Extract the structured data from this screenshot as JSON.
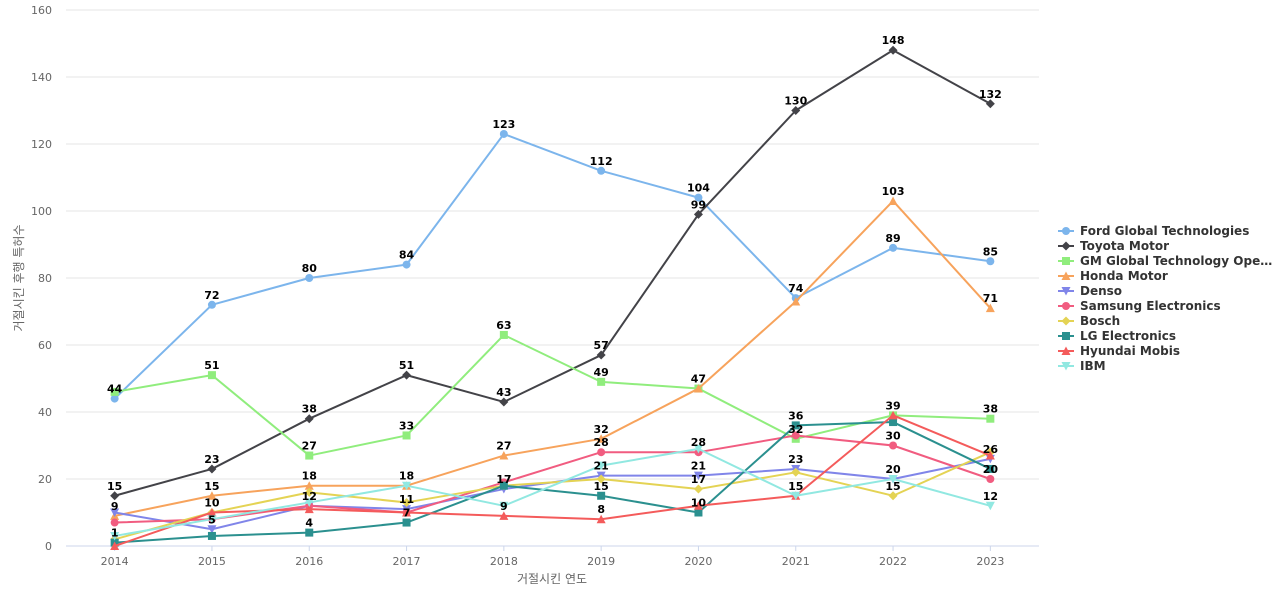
{
  "chart_data": {
    "type": "line",
    "title": "",
    "xlabel": "거절시킨 연도",
    "ylabel": "거절시킨 후행 특허수",
    "x": [
      2014,
      2015,
      2016,
      2017,
      2018,
      2019,
      2020,
      2021,
      2022,
      2023
    ],
    "ylim": [
      0,
      160
    ],
    "yticks": [
      0,
      20,
      40,
      60,
      80,
      100,
      120,
      140,
      160
    ],
    "grid": true,
    "legend_position": "right",
    "series": [
      {
        "name": "Ford Global Technologies",
        "values": [
          44,
          72,
          80,
          84,
          123,
          112,
          104,
          74,
          89,
          85
        ],
        "color": "#7cb5ec",
        "marker": "circle",
        "show_labels": true
      },
      {
        "name": "Toyota Motor",
        "values": [
          15,
          23,
          38,
          51,
          43,
          57,
          99,
          130,
          148,
          132
        ],
        "color": "#434348",
        "marker": "diamond",
        "show_labels": true
      },
      {
        "name": "GM Global Technology Operat...",
        "values": [
          46,
          51,
          27,
          33,
          63,
          49,
          47,
          32,
          39,
          38
        ],
        "color": "#90ed7d",
        "marker": "square",
        "show_labels": true
      },
      {
        "name": "Honda Motor",
        "values": [
          9,
          15,
          18,
          18,
          27,
          32,
          47,
          73,
          103,
          71
        ],
        "color": "#f7a35c",
        "marker": "triangle",
        "show_labels": true
      },
      {
        "name": "Denso",
        "values": [
          10,
          5,
          12,
          11,
          17,
          21,
          21,
          23,
          20,
          26
        ],
        "color": "#8085e9",
        "marker": "triangle-down",
        "show_labels": false
      },
      {
        "name": "Samsung Electronics",
        "values": [
          7,
          8,
          12,
          10,
          19,
          28,
          28,
          33,
          30,
          20
        ],
        "color": "#f15c80",
        "marker": "circle",
        "show_labels": false
      },
      {
        "name": "Bosch",
        "values": [
          2,
          10,
          16,
          13,
          18,
          20,
          17,
          22,
          15,
          28
        ],
        "color": "#e4d354",
        "marker": "diamond",
        "show_labels": false
      },
      {
        "name": "LG Electronics",
        "values": [
          1,
          3,
          4,
          7,
          18,
          15,
          10,
          36,
          37,
          23
        ],
        "color": "#2b908f",
        "marker": "square",
        "show_labels": false
      },
      {
        "name": "Hyundai Mobis",
        "values": [
          0,
          10,
          11,
          10,
          9,
          8,
          12,
          15,
          39,
          27
        ],
        "color": "#f45b5b",
        "marker": "triangle",
        "show_labels": false
      },
      {
        "name": "IBM",
        "values": [
          3,
          8,
          13,
          18,
          12,
          24,
          29,
          15,
          20,
          12
        ],
        "color": "#91e8e1",
        "marker": "triangle-down",
        "show_labels": false
      }
    ],
    "data_labels": [
      {
        "x": 2014,
        "label": "44",
        "value": 44
      },
      {
        "x": 2015,
        "label": "72",
        "value": 72
      },
      {
        "x": 2016,
        "label": "80",
        "value": 80
      },
      {
        "x": 2017,
        "label": "84",
        "value": 84
      },
      {
        "x": 2018,
        "label": "123",
        "value": 123
      },
      {
        "x": 2019,
        "label": "112",
        "value": 112
      },
      {
        "x": 2020,
        "label": "104",
        "value": 104
      },
      {
        "x": 2021,
        "label": "74",
        "value": 74
      },
      {
        "x": 2022,
        "label": "89",
        "value": 89
      },
      {
        "x": 2023,
        "label": "85",
        "value": 85
      },
      {
        "x": 2014,
        "label": "15",
        "value": 15
      },
      {
        "x": 2015,
        "label": "23",
        "value": 23
      },
      {
        "x": 2016,
        "label": "38",
        "value": 38
      },
      {
        "x": 2017,
        "label": "51",
        "value": 51
      },
      {
        "x": 2018,
        "label": "43",
        "value": 43
      },
      {
        "x": 2019,
        "label": "57",
        "value": 57
      },
      {
        "x": 2020,
        "label": "99",
        "value": 99
      },
      {
        "x": 2021,
        "label": "130",
        "value": 130
      },
      {
        "x": 2022,
        "label": "148",
        "value": 148
      },
      {
        "x": 2023,
        "label": "132",
        "value": 132
      },
      {
        "x": 2015,
        "label": "51",
        "value": 51
      },
      {
        "x": 2016,
        "label": "27",
        "value": 27
      },
      {
        "x": 2017,
        "label": "33",
        "value": 33
      },
      {
        "x": 2018,
        "label": "63",
        "value": 63
      },
      {
        "x": 2019,
        "label": "49",
        "value": 49
      },
      {
        "x": 2021,
        "label": "32",
        "value": 32
      },
      {
        "x": 2022,
        "label": "39",
        "value": 39
      },
      {
        "x": 2023,
        "label": "38",
        "value": 38
      },
      {
        "x": 2014,
        "label": "9",
        "value": 9
      },
      {
        "x": 2015,
        "label": "15",
        "value": 15
      },
      {
        "x": 2016,
        "label": "18",
        "value": 18
      },
      {
        "x": 2017,
        "label": "18",
        "value": 18
      },
      {
        "x": 2018,
        "label": "27",
        "value": 27
      },
      {
        "x": 2019,
        "label": "32",
        "value": 32
      },
      {
        "x": 2020,
        "label": "47",
        "value": 47
      },
      {
        "x": 2022,
        "label": "103",
        "value": 103
      },
      {
        "x": 2023,
        "label": "71",
        "value": 71
      },
      {
        "x": 2014,
        "label": "1",
        "value": 1
      },
      {
        "x": 2015,
        "label": "10",
        "value": 10
      },
      {
        "x": 2015,
        "label": "5",
        "value": 5
      },
      {
        "x": 2016,
        "label": "12",
        "value": 12
      },
      {
        "x": 2016,
        "label": "4",
        "value": 4
      },
      {
        "x": 2017,
        "label": "11",
        "value": 11
      },
      {
        "x": 2017,
        "label": "7",
        "value": 7
      },
      {
        "x": 2018,
        "label": "17",
        "value": 17
      },
      {
        "x": 2018,
        "label": "9",
        "value": 9
      },
      {
        "x": 2019,
        "label": "28",
        "value": 28
      },
      {
        "x": 2019,
        "label": "21",
        "value": 21
      },
      {
        "x": 2019,
        "label": "15",
        "value": 15
      },
      {
        "x": 2019,
        "label": "8",
        "value": 8
      },
      {
        "x": 2020,
        "label": "28",
        "value": 28
      },
      {
        "x": 2020,
        "label": "21",
        "value": 21
      },
      {
        "x": 2020,
        "label": "17",
        "value": 17
      },
      {
        "x": 2020,
        "label": "10",
        "value": 10
      },
      {
        "x": 2021,
        "label": "36",
        "value": 36
      },
      {
        "x": 2021,
        "label": "23",
        "value": 23
      },
      {
        "x": 2021,
        "label": "15",
        "value": 15
      },
      {
        "x": 2022,
        "label": "30",
        "value": 30
      },
      {
        "x": 2022,
        "label": "20",
        "value": 20
      },
      {
        "x": 2022,
        "label": "15",
        "value": 15
      },
      {
        "x": 2023,
        "label": "26",
        "value": 26
      },
      {
        "x": 2023,
        "label": "20",
        "value": 20
      },
      {
        "x": 2023,
        "label": "12",
        "value": 12
      }
    ]
  }
}
